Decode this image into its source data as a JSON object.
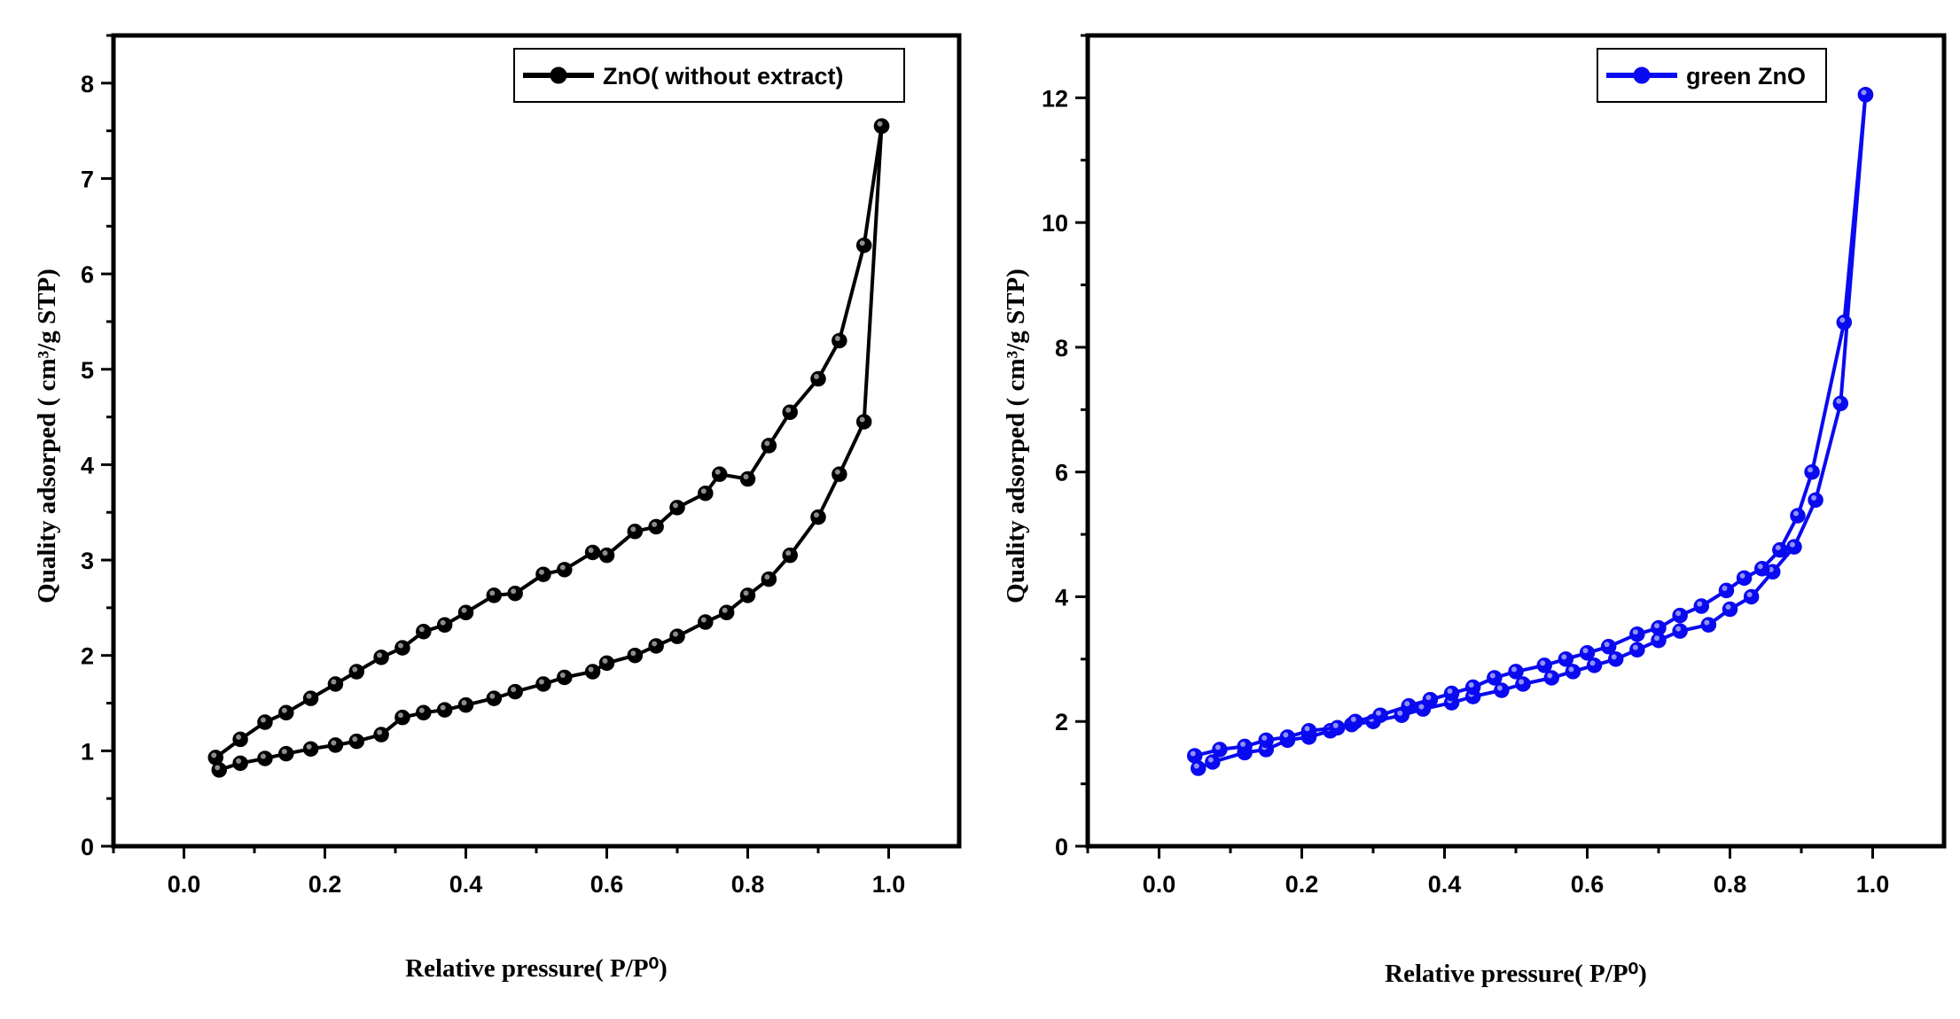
{
  "chart_data": [
    {
      "type": "line",
      "xlabel": "Relative pressure( P/P⁰)",
      "ylabel": "Quality adsorped ( cm³/g STP)",
      "xlim": [
        -0.1,
        1.1
      ],
      "ylim": [
        0,
        8.5
      ],
      "xticks": [
        "0.0",
        "0.2",
        "0.4",
        "0.6",
        "0.8",
        "1.0"
      ],
      "yticks": [
        "0",
        "1",
        "2",
        "3",
        "4",
        "5",
        "6",
        "7",
        "8"
      ],
      "grid": false,
      "legend_position": "top-right",
      "color": "#000000",
      "series": [
        {
          "name": "ZnO( without extract)",
          "segments": [
            {
              "x": [
                0.05,
                0.08,
                0.115,
                0.145,
                0.18,
                0.215,
                0.245,
                0.28,
                0.31,
                0.34,
                0.37,
                0.4,
                0.44,
                0.47,
                0.51,
                0.54,
                0.58,
                0.6,
                0.64,
                0.67,
                0.7,
                0.74,
                0.77,
                0.8,
                0.83,
                0.86,
                0.9,
                0.93,
                0.965,
                0.99
              ],
              "y": [
                0.8,
                0.87,
                0.92,
                0.97,
                1.02,
                1.06,
                1.1,
                1.17,
                1.35,
                1.4,
                1.43,
                1.48,
                1.55,
                1.62,
                1.7,
                1.77,
                1.83,
                1.92,
                2.0,
                2.1,
                2.2,
                2.35,
                2.45,
                2.63,
                2.8,
                3.05,
                3.45,
                3.9,
                4.45,
                7.55
              ]
            },
            {
              "x": [
                0.99,
                0.965,
                0.93,
                0.9,
                0.86,
                0.83,
                0.8,
                0.76,
                0.74,
                0.7,
                0.67,
                0.64,
                0.6,
                0.58,
                0.54,
                0.51,
                0.47,
                0.44,
                0.4,
                0.37,
                0.34,
                0.31,
                0.28,
                0.245,
                0.215,
                0.18,
                0.145,
                0.115,
                0.08,
                0.045
              ],
              "y": [
                7.55,
                6.3,
                5.3,
                4.9,
                4.55,
                4.2,
                3.85,
                3.9,
                3.7,
                3.55,
                3.35,
                3.3,
                3.05,
                3.08,
                2.9,
                2.85,
                2.65,
                2.63,
                2.45,
                2.32,
                2.25,
                2.08,
                1.98,
                1.83,
                1.7,
                1.55,
                1.4,
                1.3,
                1.12,
                0.93
              ]
            }
          ]
        }
      ]
    },
    {
      "type": "line",
      "xlabel": "Relative pressure( P/P⁰)",
      "ylabel": "Quality adsorped ( cm³/g STP)",
      "xlim": [
        -0.1,
        1.1
      ],
      "ylim": [
        0,
        13
      ],
      "xticks": [
        "0.0",
        "0.2",
        "0.4",
        "0.6",
        "0.8",
        "1.0"
      ],
      "yticks": [
        "0",
        "2",
        "4",
        "6",
        "8",
        "10",
        "12"
      ],
      "grid": false,
      "legend_position": "top-right",
      "color": "#0a0af0",
      "series": [
        {
          "name": "green ZnO",
          "segments": [
            {
              "x": [
                0.055,
                0.075,
                0.12,
                0.15,
                0.18,
                0.21,
                0.24,
                0.27,
                0.3,
                0.34,
                0.37,
                0.41,
                0.44,
                0.48,
                0.51,
                0.55,
                0.58,
                0.61,
                0.64,
                0.67,
                0.7,
                0.73,
                0.77,
                0.8,
                0.83,
                0.86,
                0.89,
                0.92,
                0.955,
                0.99
              ],
              "y": [
                1.25,
                1.35,
                1.5,
                1.55,
                1.7,
                1.75,
                1.85,
                1.95,
                2.0,
                2.1,
                2.2,
                2.3,
                2.4,
                2.5,
                2.6,
                2.7,
                2.8,
                2.9,
                3.0,
                3.15,
                3.3,
                3.45,
                3.55,
                3.8,
                4.0,
                4.4,
                4.8,
                5.55,
                7.1,
                12.05
              ]
            },
            {
              "x": [
                0.99,
                0.96,
                0.915,
                0.895,
                0.87,
                0.845,
                0.82,
                0.795,
                0.76,
                0.73,
                0.7,
                0.67,
                0.63,
                0.6,
                0.57,
                0.54,
                0.5,
                0.47,
                0.44,
                0.41,
                0.38,
                0.35,
                0.31,
                0.275,
                0.25,
                0.21,
                0.18,
                0.15,
                0.12,
                0.085,
                0.05
              ],
              "y": [
                12.05,
                8.4,
                6.0,
                5.3,
                4.75,
                4.45,
                4.3,
                4.1,
                3.85,
                3.7,
                3.5,
                3.4,
                3.2,
                3.1,
                3.0,
                2.9,
                2.8,
                2.7,
                2.55,
                2.45,
                2.35,
                2.25,
                2.1,
                2.0,
                1.9,
                1.85,
                1.75,
                1.7,
                1.6,
                1.55,
                1.45
              ]
            }
          ]
        }
      ]
    }
  ]
}
